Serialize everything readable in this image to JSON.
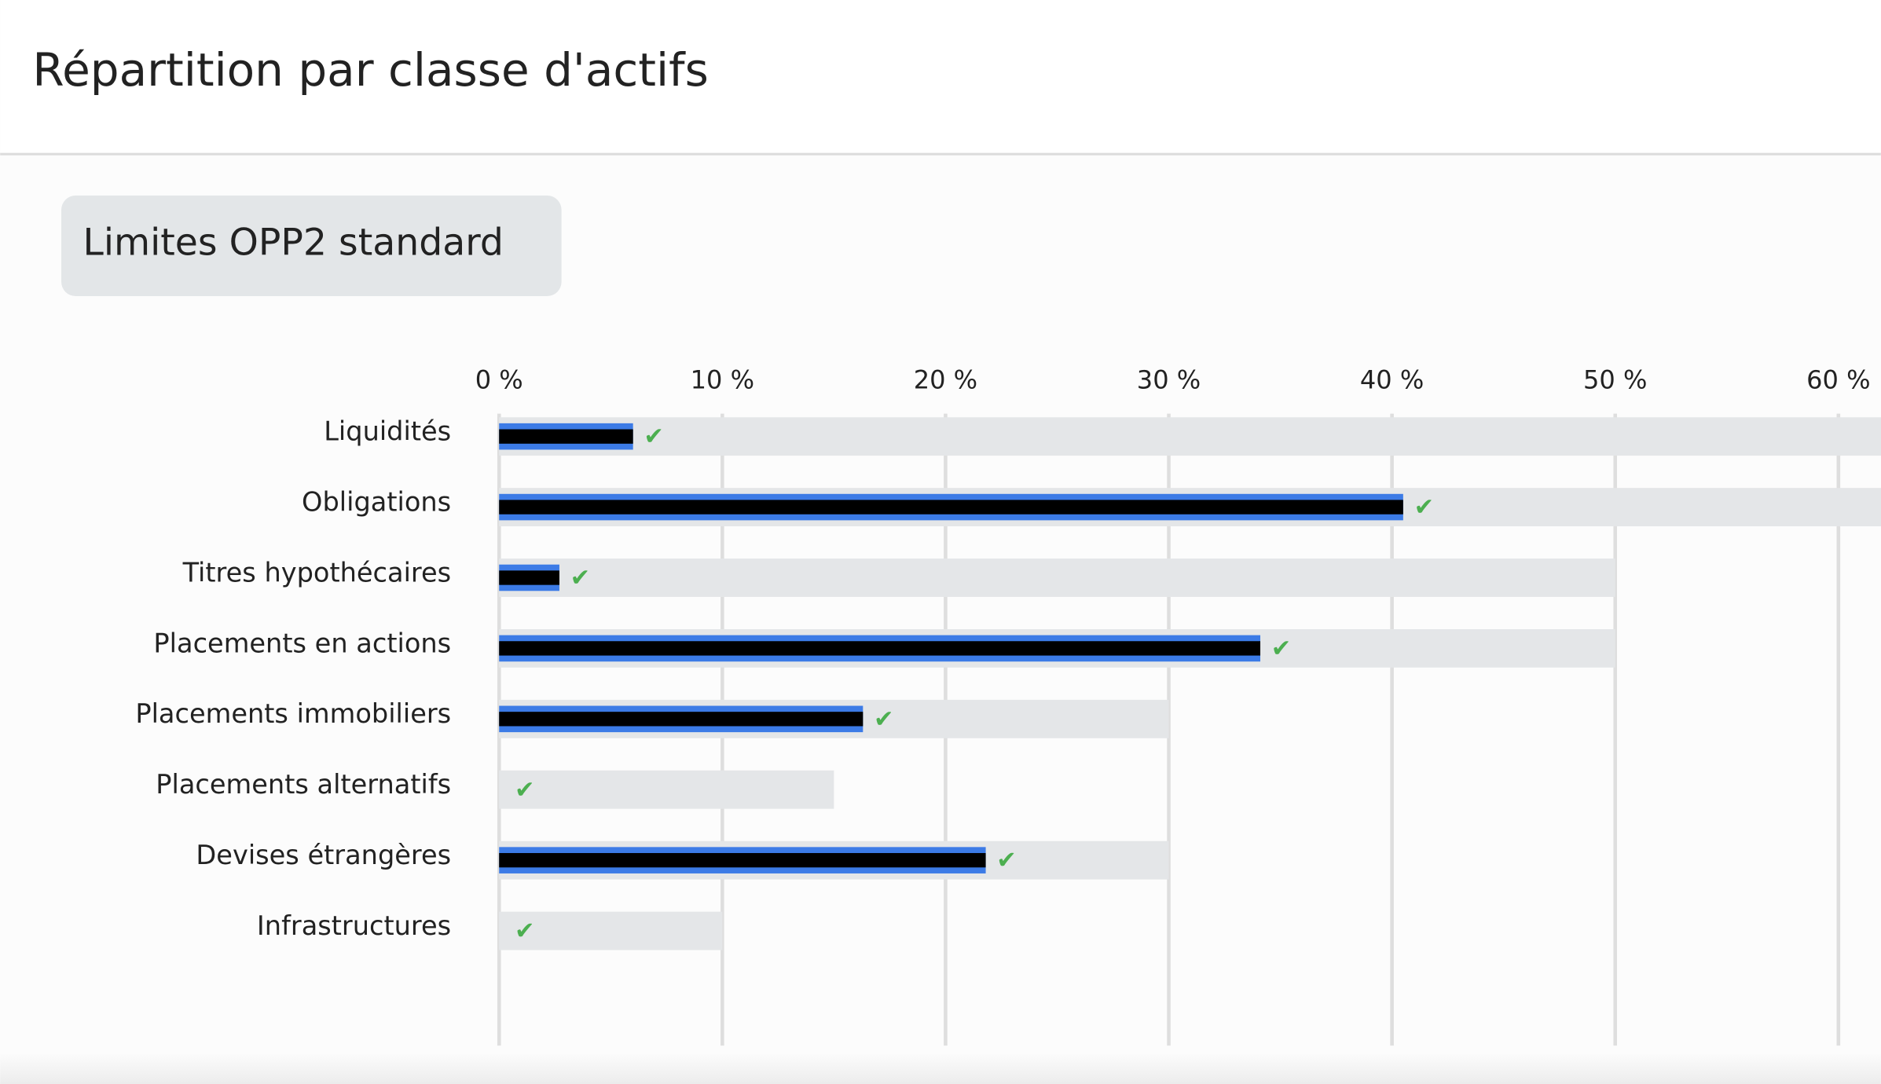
{
  "header": {
    "title": "Répartition par classe d'actifs"
  },
  "button": {
    "label": "Limites OPP2 standard"
  },
  "chart_data": {
    "type": "bar",
    "orientation": "horizontal",
    "categories": [
      "Liquidités",
      "Obligations",
      "Titres hypothécaires",
      "Placements en actions",
      "Placements immobiliers",
      "Placements alternatifs",
      "Devises étrangères",
      "Infrastructures"
    ],
    "values": [
      6,
      40.5,
      2.7,
      34.1,
      16.3,
      0,
      21.8,
      0
    ],
    "limits": [
      100,
      100,
      50,
      50,
      30,
      15,
      30,
      10
    ],
    "color": "#000000",
    "outline_color": "#3c7be6",
    "limit_color": "#e4e6e8",
    "check_color": "#4caf50",
    "xlim": [
      0,
      61.9
    ],
    "xticks": [
      {
        "value": 0,
        "label": "0 %"
      },
      {
        "value": 10,
        "label": "10 %"
      },
      {
        "value": 20,
        "label": "20 %"
      },
      {
        "value": 30,
        "label": "30 %"
      },
      {
        "value": 40,
        "label": "40 %"
      },
      {
        "value": 50,
        "label": "50 %"
      },
      {
        "value": 60,
        "label": "60 %"
      }
    ],
    "grid": true
  }
}
